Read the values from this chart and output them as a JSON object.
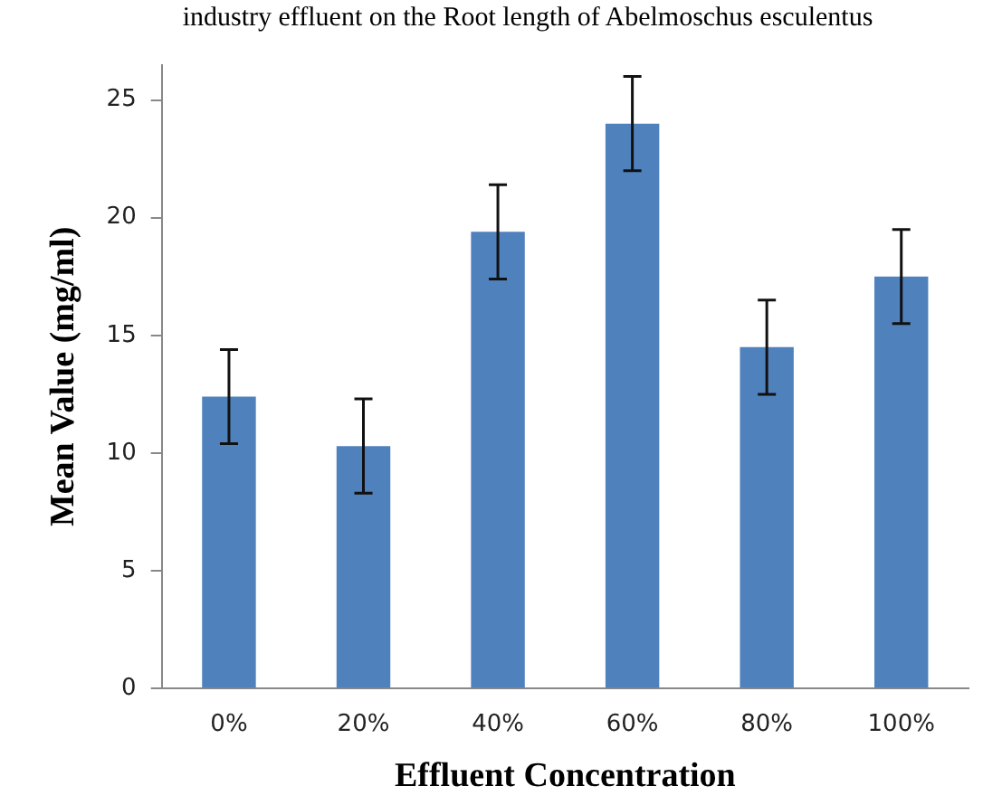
{
  "chart_data": {
    "type": "bar",
    "title": "industry effluent on the Root length of Abelmoschus esculentus",
    "xlabel": "Effluent Concentration",
    "ylabel": "Mean Value (mg/ml)",
    "categories": [
      "0%",
      "20%",
      "40%",
      "60%",
      "80%",
      "100%"
    ],
    "values": [
      12.4,
      10.3,
      19.4,
      24,
      14.5,
      17.5
    ],
    "errors": [
      2,
      2,
      2,
      2,
      2,
      2
    ],
    "color": "#4f81bd",
    "ylim": [
      0,
      26.5
    ],
    "yticks": [
      0,
      5,
      10,
      15,
      20,
      25
    ],
    "grid": false,
    "legend": false
  }
}
